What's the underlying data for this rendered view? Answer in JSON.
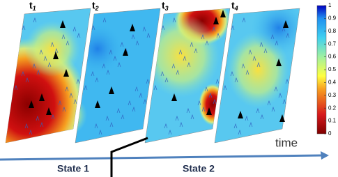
{
  "panels": [
    {
      "label": "t",
      "subscript": "1"
    },
    {
      "label": "t",
      "subscript": "2"
    },
    {
      "label": "t",
      "subscript": "3"
    },
    {
      "label": "t",
      "subscript": "4"
    }
  ],
  "axis": {
    "label": "time"
  },
  "states": [
    "State 1",
    "State 2"
  ],
  "colorbar": {
    "ticks": [
      0,
      0.1,
      0.2,
      0.3,
      0.4,
      0.5,
      0.6,
      0.7,
      0.8,
      0.9,
      1
    ]
  }
}
